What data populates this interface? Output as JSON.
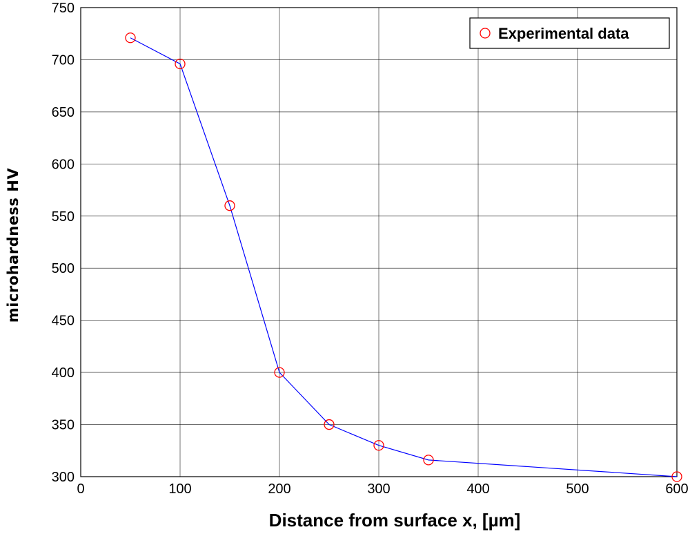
{
  "chart_data": {
    "type": "line",
    "title": "",
    "xlabel": "Distance from surface  x, [µm]",
    "ylabel": "microhardness HV",
    "xlim": [
      0,
      600
    ],
    "ylim": [
      300,
      750
    ],
    "x_ticks": [
      0,
      100,
      200,
      300,
      400,
      500,
      600
    ],
    "y_ticks": [
      300,
      350,
      400,
      450,
      500,
      550,
      600,
      650,
      700,
      750
    ],
    "grid": true,
    "legend": {
      "position": "top-right",
      "entries": [
        "Experimental data"
      ]
    },
    "series": [
      {
        "name": "Experimental data",
        "marker": "circle",
        "marker_color": "#ff0000",
        "line_color": "#0000ff",
        "x": [
          50,
          100,
          150,
          200,
          250,
          300,
          350,
          600
        ],
        "y": [
          721,
          696,
          560,
          400,
          350,
          330,
          316,
          300
        ]
      }
    ]
  }
}
